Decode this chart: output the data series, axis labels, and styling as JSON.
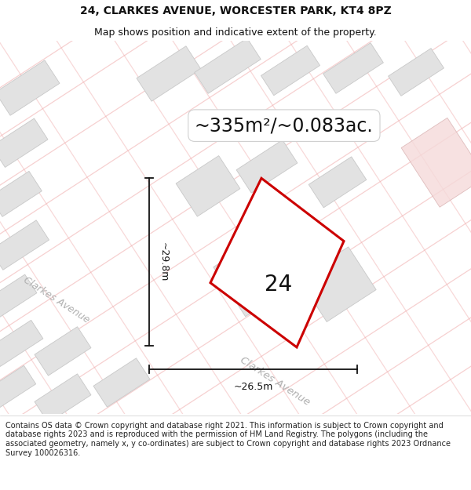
{
  "title": "24, CLARKES AVENUE, WORCESTER PARK, KT4 8PZ",
  "subtitle": "Map shows position and indicative extent of the property.",
  "footer": "Contains OS data © Crown copyright and database right 2021. This information is subject to Crown copyright and database rights 2023 and is reproduced with the permission of HM Land Registry. The polygons (including the associated geometry, namely x, y co-ordinates) are subject to Crown copyright and database rights 2023 Ordnance Survey 100026316.",
  "area_label": "~335m²/~0.083ac.",
  "number_label": "24",
  "width_label": "~26.5m",
  "height_label": "~29.8m",
  "map_bg": "#f7f7f7",
  "building_fill": "#e2e2e2",
  "building_edge": "#c8c8c8",
  "plot_color": "#cc0000",
  "road_line_color": "#f0aaaa",
  "road_band_color": "#f5f5f5",
  "road_label_color": "#b0b0b0",
  "dim_color": "#111111",
  "text_color": "#111111",
  "pink_fill": "#f5dada",
  "title_fs": 10,
  "subtitle_fs": 9,
  "footer_fs": 7,
  "area_fs": 17,
  "number_fs": 20,
  "dim_fs": 9,
  "road_label_fs": 9
}
